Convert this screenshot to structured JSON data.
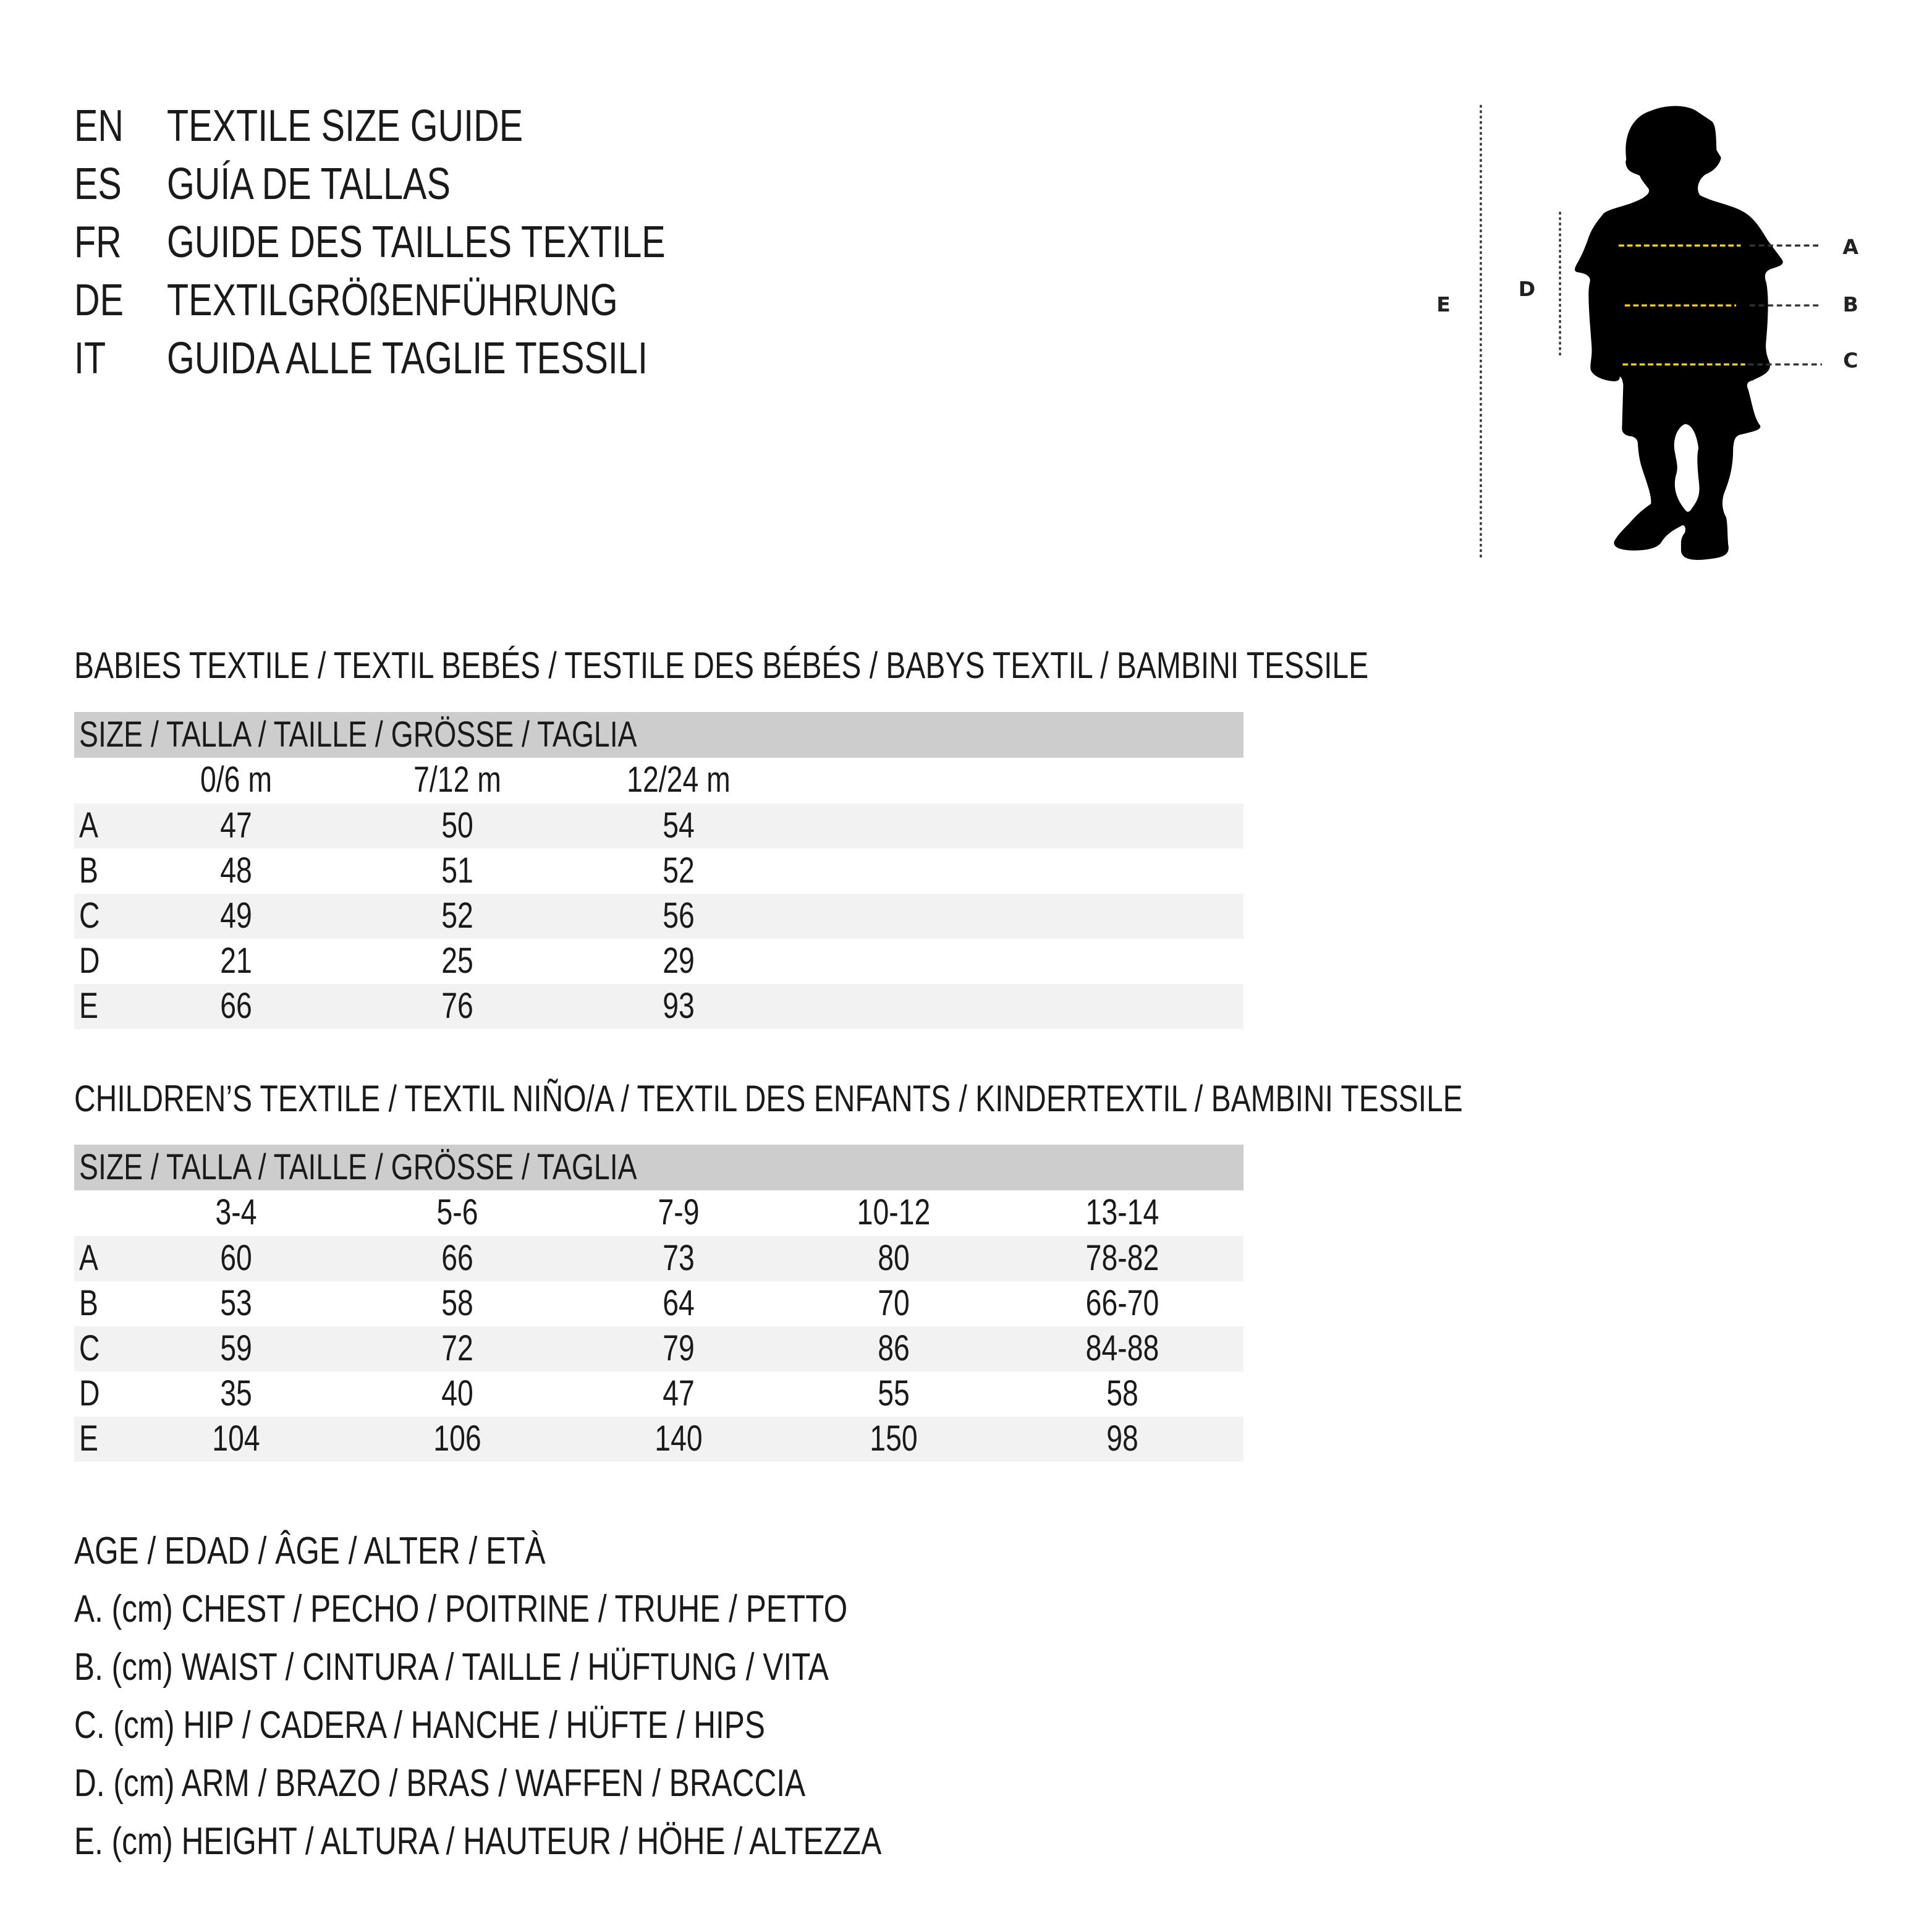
{
  "titles": [
    {
      "lang": "EN",
      "text": "TEXTILE SIZE GUIDE"
    },
    {
      "lang": "ES",
      "text": "GUÍA DE TALLAS"
    },
    {
      "lang": "FR",
      "text": "GUIDE DES TAILLES TEXTILE"
    },
    {
      "lang": "DE",
      "text": "TEXTILGRÖßENFÜHRUNG"
    },
    {
      "lang": "IT",
      "text": "GUIDA ALLE TAGLIE TESSILI"
    }
  ],
  "figure": {
    "labels": {
      "A": "A",
      "B": "B",
      "C": "C",
      "D": "D",
      "E": "E"
    },
    "colors": {
      "silhouette": "#000000",
      "measure_line": "#f2d21b",
      "guide_line": "#333333"
    }
  },
  "babies": {
    "heading": "BABIES TEXTILE / TEXTIL BEBÉS / TESTILE DES BÉBÉS / BABYS TEXTIL / BAMBINI TESSILE",
    "size_header": "SIZE / TALLA / TAILLE / GRÖSSE / TAGLIA",
    "columns": [
      "0/6 m",
      "7/12 m",
      "12/24 m"
    ],
    "rows": [
      {
        "label": "A",
        "values": [
          "47",
          "50",
          "54"
        ]
      },
      {
        "label": "B",
        "values": [
          "48",
          "51",
          "52"
        ]
      },
      {
        "label": "C",
        "values": [
          "49",
          "52",
          "56"
        ]
      },
      {
        "label": "D",
        "values": [
          "21",
          "25",
          "29"
        ]
      },
      {
        "label": "E",
        "values": [
          "66",
          "76",
          "93"
        ]
      }
    ]
  },
  "children": {
    "heading": "CHILDREN’S TEXTILE / TEXTIL NIÑO/A / TEXTIL DES ENFANTS / KINDERTEXTIL / BAMBINI TESSILE",
    "size_header": "SIZE / TALLA / TAILLE / GRÖSSE / TAGLIA",
    "columns": [
      "3-4",
      "5-6",
      "7-9",
      "10-12",
      "13-14"
    ],
    "rows": [
      {
        "label": "A",
        "values": [
          "60",
          "66",
          "73",
          "80",
          "78-82"
        ]
      },
      {
        "label": "B",
        "values": [
          "53",
          "58",
          "64",
          "70",
          "66-70"
        ]
      },
      {
        "label": "C",
        "values": [
          "59",
          "72",
          "79",
          "86",
          "84-88"
        ]
      },
      {
        "label": "D",
        "values": [
          "35",
          "40",
          "47",
          "55",
          "58"
        ]
      },
      {
        "label": "E",
        "values": [
          "104",
          "106",
          "140",
          "150",
          "98"
        ]
      }
    ]
  },
  "legend": [
    "AGE / EDAD / ÂGE / ALTER / ETÀ",
    "A. (cm) CHEST / PECHO / POITRINE / TRUHE / PETTO",
    "B. (cm) WAIST / CINTURA / TAILLE / HÜFTUNG / VITA",
    "C. (cm) HIP / CADERA / HANCHE / HÜFTE / HIPS",
    "D. (cm) ARM / BRAZO / BRAS / WAFFEN / BRACCIA",
    "E. (cm) HEIGHT / ALTURA / HAUTEUR / HÖHE / ALTEZZA"
  ]
}
